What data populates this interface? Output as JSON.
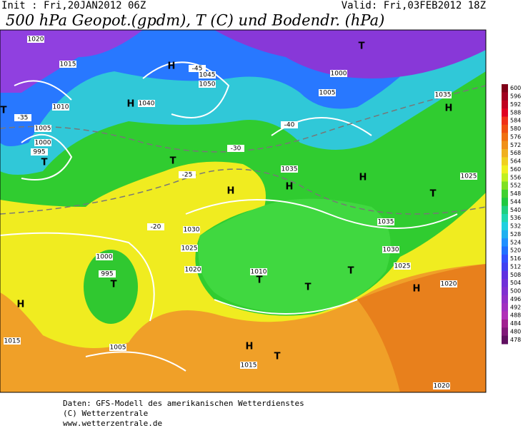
{
  "header": {
    "init": "Init : Fri,20JAN2012 06Z",
    "valid": "Valid: Fri,03FEB2012 18Z",
    "title": "500 hPa Geopot.(gpdm), T (C) und Bodendr. (hPa)"
  },
  "footer": [
    "Daten: GFS-Modell des amerikanischen Wetterdienstes",
    "(C) Wetterzentrale",
    "www.wetterzentrale.de"
  ],
  "map": {
    "pressure_labels": [
      "1020",
      "1015",
      "1010",
      "1005",
      "995",
      "1000",
      "1040",
      "1045",
      "1050",
      "1035",
      "1030",
      "1025",
      "1020",
      "1010",
      "1000",
      "995",
      "1005",
      "1015",
      "1015",
      "1020",
      "1020",
      "1025",
      "1030",
      "1035",
      "1025",
      "1035",
      "1005",
      "1000",
      "-35",
      "-30",
      "-25",
      "-20",
      "-40",
      "-45"
    ],
    "centers": [
      "H",
      "H",
      "H",
      "H",
      "H",
      "H",
      "H",
      "H",
      "H",
      "T",
      "T",
      "T",
      "T",
      "T",
      "T",
      "T",
      "T",
      "T",
      "T"
    ]
  },
  "legend": {
    "values": [
      600,
      596,
      592,
      588,
      584,
      580,
      576,
      572,
      568,
      564,
      560,
      556,
      552,
      548,
      544,
      540,
      536,
      532,
      528,
      524,
      520,
      516,
      512,
      508,
      504,
      500,
      496,
      492,
      488,
      484,
      480,
      478
    ],
    "colors": [
      "#800018",
      "#a00020",
      "#c00020",
      "#e00020",
      "#f03018",
      "#f05010",
      "#f07010",
      "#f09018",
      "#f0b020",
      "#f0d020",
      "#f0f020",
      "#c0f020",
      "#80e020",
      "#40d030",
      "#20c840",
      "#20d080",
      "#20d8b0",
      "#20d0e0",
      "#20b0f0",
      "#2090ff",
      "#2070ff",
      "#3050ff",
      "#4040f0",
      "#6030e0",
      "#7030d8",
      "#8030d0",
      "#9030c8",
      "#a030c0",
      "#b030b8",
      "#a02090",
      "#801878",
      "#601060"
    ]
  }
}
